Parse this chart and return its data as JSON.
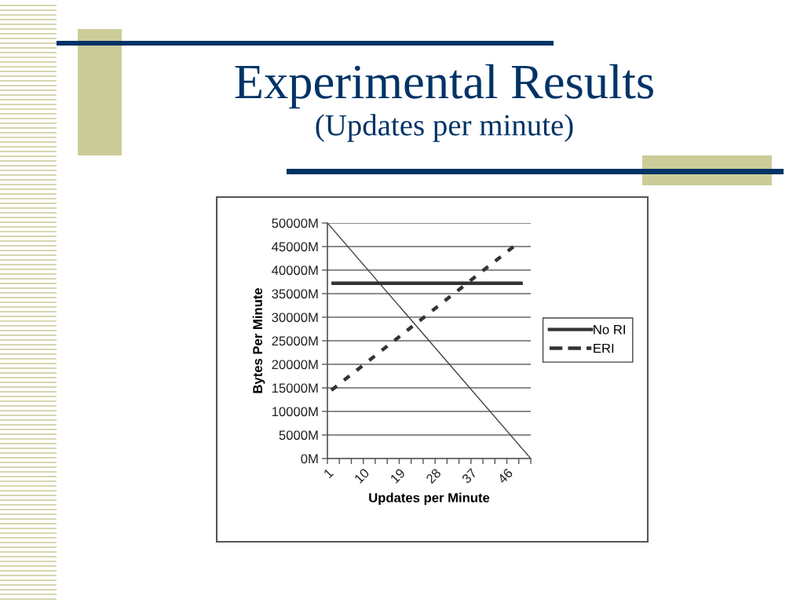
{
  "chart_data": {
    "type": "line",
    "title": "Experimental Results",
    "subtitle": "(Updates per minute)",
    "xlabel": "Updates per Minute",
    "ylabel": "Bytes Per Minute",
    "xlim": [
      1,
      52
    ],
    "xticks": [
      1,
      {
        "value": 4,
        "label": null
      },
      {
        "value": 7,
        "label": null
      },
      10,
      {
        "value": 13,
        "label": null
      },
      {
        "value": 16,
        "label": null
      },
      19,
      {
        "value": 22,
        "label": null
      },
      {
        "value": 25,
        "label": null
      },
      28,
      {
        "value": 31,
        "label": null
      },
      {
        "value": 34,
        "label": null
      },
      37,
      {
        "value": 40,
        "label": null
      },
      {
        "value": 43,
        "label": null
      },
      46,
      {
        "value": 49,
        "label": null
      },
      {
        "value": 52,
        "label": null
      }
    ],
    "ylim": [
      0,
      50000
    ],
    "yticks": [
      {
        "value": 0,
        "label": "0M"
      },
      {
        "value": 5000,
        "label": "5000M"
      },
      {
        "value": 10000,
        "label": "10000M"
      },
      {
        "value": 15000,
        "label": "15000M"
      },
      {
        "value": 20000,
        "label": "20000M"
      },
      {
        "value": 25000,
        "label": "25000M"
      },
      {
        "value": 30000,
        "label": "30000M"
      },
      {
        "value": 35000,
        "label": "35000M"
      },
      {
        "value": 40000,
        "label": "40000M"
      },
      {
        "value": 45000,
        "label": "45000M"
      },
      {
        "value": 50000,
        "label": "50000M"
      }
    ],
    "grid": "y",
    "legend": "right",
    "series": [
      {
        "name": "No RI",
        "color": "#333333",
        "line_style": "solid",
        "x": [
          2,
          50
        ],
        "values": [
          37200,
          37200
        ]
      },
      {
        "name": "ERI",
        "color": "#333333",
        "line_style": "dashed",
        "x": [
          2,
          48
        ],
        "values": [
          14500,
          45200
        ]
      },
      {
        "color": "#404040",
        "line_style": "solid",
        "x": [
          1,
          52
        ],
        "values": [
          50000,
          0
        ]
      }
    ]
  }
}
